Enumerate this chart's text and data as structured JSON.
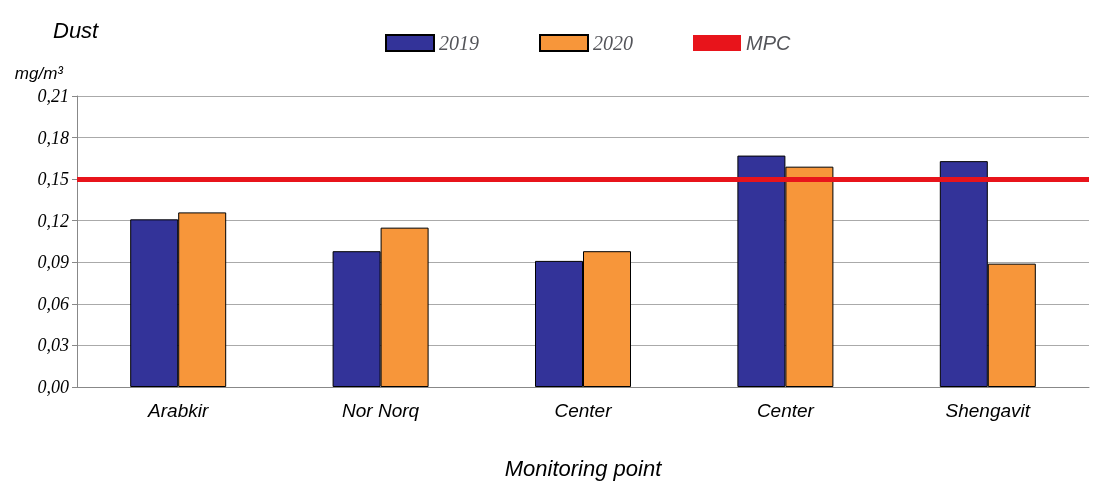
{
  "chart_data": {
    "type": "bar",
    "title": "Dust",
    "ylabel": "mg/m³",
    "xlabel": "Monitoring point",
    "categories": [
      "Arabkir",
      "Nor Norq",
      "Center",
      "Center",
      "Shengavit"
    ],
    "series": [
      {
        "name": "2019",
        "color": "#333399",
        "values": [
          0.121,
          0.098,
          0.091,
          0.167,
          0.163
        ]
      },
      {
        "name": "2020",
        "color": "#f7963a",
        "values": [
          0.126,
          0.115,
          0.098,
          0.159,
          0.089
        ]
      }
    ],
    "ylim": [
      0,
      0.21
    ],
    "yticks": [
      {
        "value": 0,
        "label": "0,00"
      },
      {
        "value": 0.03,
        "label": "0,03"
      },
      {
        "value": 0.06,
        "label": "0,06"
      },
      {
        "value": 0.09,
        "label": "0,09"
      },
      {
        "value": 0.12,
        "label": "0,12"
      },
      {
        "value": 0.15,
        "label": "0,15"
      },
      {
        "value": 0.18,
        "label": "0,18"
      },
      {
        "value": 0.21,
        "label": "0,21"
      }
    ],
    "ref_lines": [
      {
        "axis": "y",
        "value": 0.15,
        "label": "MPC",
        "color": "#e8141b"
      }
    ],
    "grid": "y",
    "legend": "top"
  }
}
